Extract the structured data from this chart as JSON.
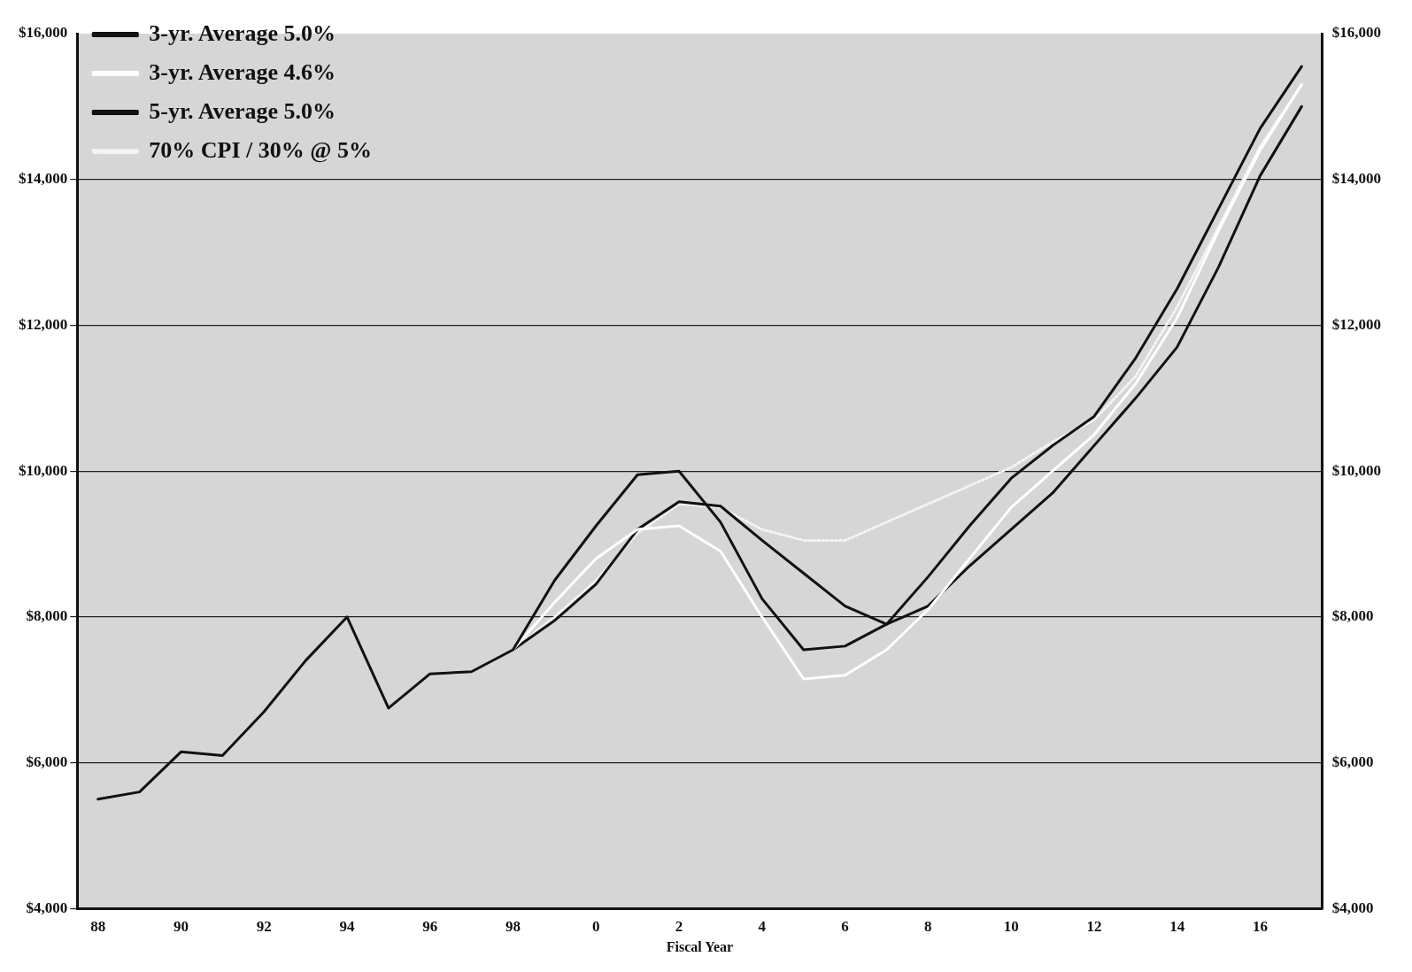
{
  "chart_data": {
    "type": "line",
    "xlabel": "Fiscal Year",
    "categories": [
      "88",
      null,
      "90",
      null,
      "92",
      null,
      "94",
      null,
      "96",
      null,
      "98",
      null,
      "0",
      null,
      "2",
      null,
      "4",
      null,
      "6",
      null,
      "8",
      null,
      "10",
      null,
      "12",
      null,
      "14",
      null,
      "16",
      null
    ],
    "series": [
      {
        "name": "3-yr. Average 5.0%",
        "color": "#111111",
        "values": [
          5500,
          5600,
          6150,
          6100,
          6700,
          7400,
          8000,
          6750,
          7220,
          7250,
          7550,
          8500,
          9250,
          9950,
          10000,
          9300,
          8250,
          7550,
          7600,
          7900,
          8550,
          9250,
          9900,
          10350,
          10750,
          11550,
          12500,
          13600,
          14700,
          15550
        ]
      },
      {
        "name": "3-yr. Average 4.6%",
        "color": "#ffffff",
        "values": [
          null,
          null,
          null,
          null,
          null,
          null,
          null,
          null,
          null,
          null,
          7550,
          8200,
          8800,
          9200,
          9250,
          8900,
          8000,
          7150,
          7200,
          7550,
          8100,
          8800,
          9500,
          10000,
          10500,
          11200,
          12100,
          13300,
          14400,
          15300
        ]
      },
      {
        "name": "5-yr. Average 5.0%",
        "color": "#111111",
        "values": [
          null,
          null,
          null,
          null,
          null,
          null,
          null,
          null,
          null,
          null,
          7550,
          7950,
          8450,
          9200,
          9580,
          9520,
          9050,
          8600,
          8150,
          7900,
          8150,
          8700,
          9200,
          9700,
          10350,
          11000,
          11700,
          12800,
          14050,
          15000
        ]
      },
      {
        "name": "70% CPI / 30% @ 5%",
        "color": "#f4f4f4",
        "line_style": "dotted",
        "values": [
          null,
          null,
          null,
          null,
          null,
          null,
          null,
          null,
          null,
          null,
          7550,
          8000,
          8500,
          9150,
          9550,
          9500,
          9200,
          9050,
          9050,
          9300,
          9550,
          9800,
          10050,
          10400,
          10700,
          11300,
          12250,
          13350,
          14450,
          15300
        ]
      }
    ],
    "ylim": [
      4000,
      16000
    ],
    "yticks": [
      {
        "value": 4000,
        "label": "$4,000"
      },
      {
        "value": 6000,
        "label": "$6,000"
      },
      {
        "value": 8000,
        "label": "$8,000"
      },
      {
        "value": 10000,
        "label": "$10,000"
      },
      {
        "value": 12000,
        "label": "$12,000"
      },
      {
        "value": 14000,
        "label": "$14,000"
      },
      {
        "value": 16000,
        "label": "$16,000"
      }
    ],
    "y2lim": [
      4000,
      16000
    ],
    "y2ticks": [
      {
        "value": 4000,
        "label": "$4,000"
      },
      {
        "value": 6000,
        "label": "$6,000"
      },
      {
        "value": 8000,
        "label": "$8,000"
      },
      {
        "value": 10000,
        "label": "$10,000"
      },
      {
        "value": 12000,
        "label": "$12,000"
      },
      {
        "value": 14000,
        "label": "$14,000"
      },
      {
        "value": 16000,
        "label": "$16,000"
      }
    ],
    "grid": "y",
    "legend": "top left",
    "marker": "none"
  }
}
